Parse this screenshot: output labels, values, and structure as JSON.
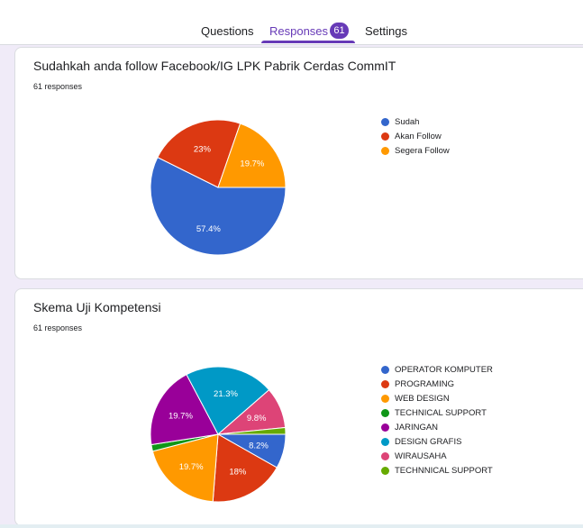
{
  "tabs": [
    {
      "label": "Questions"
    },
    {
      "label": "Responses",
      "badge": "61",
      "active": true
    },
    {
      "label": "Settings"
    }
  ],
  "chart_data": [
    {
      "type": "pie",
      "title": "Sudahkah anda follow Facebook/IG LPK Pabrik Cerdas CommIT",
      "subtitle": "61 responses",
      "legend_position": "right",
      "slices": [
        {
          "name": "Sudah",
          "value": 57.4,
          "label": "57.4%",
          "color": "#3366cc"
        },
        {
          "name": "Akan Follow",
          "value": 23,
          "label": "23%",
          "color": "#dc3912"
        },
        {
          "name": "Segera Follow",
          "value": 19.7,
          "label": "19.7%",
          "color": "#ff9900"
        }
      ]
    },
    {
      "type": "pie",
      "title": "Skema Uji Kompetensi",
      "subtitle": "61 responses",
      "legend_position": "right",
      "slices": [
        {
          "name": "OPERATOR KOMPUTER",
          "value": 8.2,
          "label": "8.2%",
          "color": "#3366cc"
        },
        {
          "name": "PROGRAMING",
          "value": 18,
          "label": "18%",
          "color": "#dc3912"
        },
        {
          "name": "WEB DESIGN",
          "value": 19.7,
          "label": "19.7%",
          "color": "#ff9900"
        },
        {
          "name": "TECHNICAL SUPPORT",
          "value": 1.6,
          "label": "",
          "color": "#109618"
        },
        {
          "name": "JARINGAN",
          "value": 19.7,
          "label": "19.7%",
          "color": "#990099"
        },
        {
          "name": "DESIGN GRAFIS",
          "value": 21.3,
          "label": "21.3%",
          "color": "#0099c6"
        },
        {
          "name": "WIRAUSAHA",
          "value": 9.8,
          "label": "9.8%",
          "color": "#dd4477"
        },
        {
          "name": "TECHNNICAL SUPPORT",
          "value": 1.6,
          "label": "",
          "color": "#66aa00"
        }
      ]
    }
  ]
}
